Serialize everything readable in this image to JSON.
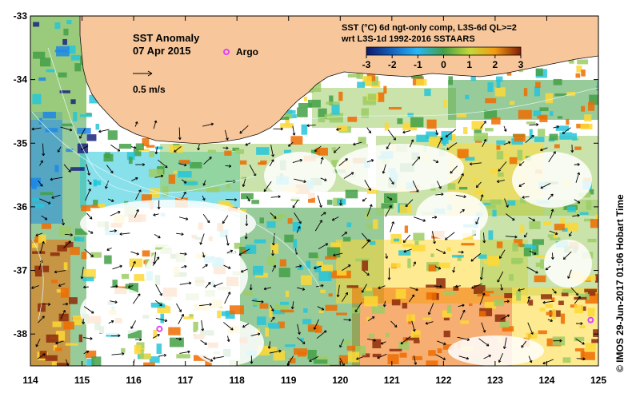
{
  "map": {
    "title": "SST Anomaly",
    "date": "07 Apr 2015",
    "arrow_label": "0.5 m/s",
    "argo_label": "Argo",
    "colorbar_title_1": "SST (°C) 6d ngt-only comp, L3S-6d QL>=2",
    "colorbar_title_2": "wrt L3S-1d 1992-2016 SSTAARS",
    "colorbar_ticks": [
      "-3",
      "-2",
      "-1",
      "0",
      "1",
      "2",
      "3"
    ],
    "x_ticks": [
      "114",
      "115",
      "116",
      "117",
      "118",
      "119",
      "120",
      "121",
      "122",
      "123",
      "124",
      "125"
    ],
    "y_ticks": [
      "-33",
      "-34",
      "-35",
      "-36",
      "-37",
      "-38"
    ],
    "credit": "© IMOS 29-Jun-2017 01:06 Hobart Time",
    "colors": {
      "land": "#f7c79b",
      "very_cold": "#1a237e",
      "cold": "#1e88e5",
      "cool": "#26c6da",
      "neutral": "#43a047",
      "mild": "#9ccc65",
      "warm": "#fdd835",
      "hot": "#ef6c00",
      "very_hot": "#8d2a0b",
      "argo": "#e040fb"
    },
    "argo_floats": [
      {
        "lon": 116.5,
        "lat": -37.92
      },
      {
        "lon": 124.85,
        "lat": -37.78
      }
    ]
  }
}
